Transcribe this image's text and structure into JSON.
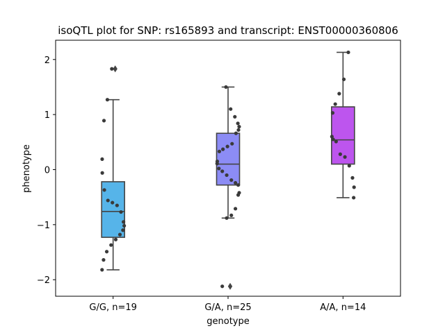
{
  "chart_data": {
    "type": "box",
    "title": "isoQTL plot for SNP: rs165893 and transcript: ENST00000360806",
    "xlabel": "genotype",
    "ylabel": "phenotype",
    "ylim": [
      -2.3,
      2.35
    ],
    "yticks": [
      -2,
      -1,
      0,
      1,
      2
    ],
    "ytick_labels": [
      "−2",
      "−1",
      "0",
      "1",
      "2"
    ],
    "grid": false,
    "categories": [
      "G/G, n=19",
      "G/A, n=25",
      "A/A, n=14"
    ],
    "colors": [
      "#56b4e9",
      "#8c8cf5",
      "#bd55ee"
    ],
    "boxes": [
      {
        "q1": -1.23,
        "median": -0.76,
        "q3": -0.22,
        "whisker_low": -1.82,
        "whisker_high": 1.27,
        "outliers": [
          1.83
        ]
      },
      {
        "q1": -0.28,
        "median": 0.1,
        "q3": 0.66,
        "whisker_low": -0.88,
        "whisker_high": 1.5,
        "outliers": [
          -2.12
        ]
      },
      {
        "q1": 0.1,
        "median": 0.54,
        "q3": 1.14,
        "whisker_low": -0.51,
        "whisker_high": 2.13,
        "outliers": []
      }
    ],
    "points": [
      [
        1.83,
        1.27,
        0.89,
        0.19,
        -0.06,
        -0.37,
        -0.56,
        -0.6,
        -0.65,
        -0.77,
        -0.95,
        -1.02,
        -1.1,
        -1.18,
        -1.27,
        -1.37,
        -1.49,
        -1.64,
        -1.82
      ],
      [
        1.5,
        1.1,
        0.96,
        0.84,
        0.78,
        0.72,
        0.66,
        0.47,
        0.42,
        0.37,
        0.33,
        0.15,
        0.11,
        0.02,
        -0.03,
        -0.1,
        -0.19,
        -0.24,
        -0.28,
        -0.42,
        -0.46,
        -0.71,
        -0.83,
        -0.88,
        -2.12
      ],
      [
        2.13,
        1.64,
        1.38,
        1.19,
        1.03,
        0.6,
        0.55,
        0.51,
        0.28,
        0.23,
        0.07,
        -0.15,
        -0.32,
        -0.51
      ]
    ]
  }
}
